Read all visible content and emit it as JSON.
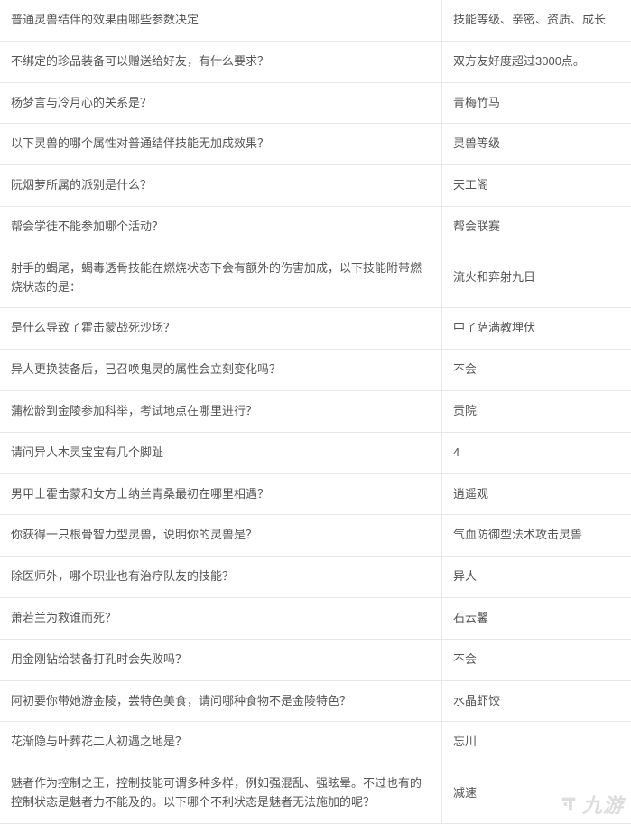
{
  "table": {
    "rows": [
      {
        "q": "普通灵兽结伴的效果由哪些参数决定",
        "a": "技能等级、亲密、资质、成长"
      },
      {
        "q": "不绑定的珍品装备可以赠送给好友，有什么要求？",
        "a": "双方友好度超过3000点。"
      },
      {
        "q": "杨梦言与冷月心的关系是？",
        "a": "青梅竹马"
      },
      {
        "q": "以下灵兽的哪个属性对普通结伴技能无加成效果？",
        "a": "灵兽等级"
      },
      {
        "q": "阮烟萝所属的派别是什么？",
        "a": "天工阁"
      },
      {
        "q": "帮会学徒不能参加哪个活动？",
        "a": "帮会联赛"
      },
      {
        "q": "射手的蝎尾，蝎毒透骨技能在燃烧状态下会有额外的伤害加成，以下技能附带燃烧状态的是：",
        "a": "流火和弈射九日"
      },
      {
        "q": "是什么导致了霍击蒙战死沙场？",
        "a": "中了萨满教埋伏"
      },
      {
        "q": "异人更换装备后，已召唤鬼灵的属性会立刻变化吗？",
        "a": "不会"
      },
      {
        "q": "蒲松龄到金陵参加科举，考试地点在哪里进行？",
        "a": "贡院"
      },
      {
        "q": "请问异人木灵宝宝有几个脚趾",
        "a": "4"
      },
      {
        "q": "男甲士霍击蒙和女方士纳兰青桑最初在哪里相遇？",
        "a": "逍遥观"
      },
      {
        "q": "你获得一只根骨智力型灵兽，说明你的灵兽是？",
        "a": "气血防御型法术攻击灵兽"
      },
      {
        "q": "除医师外，哪个职业也有治疗队友的技能？",
        "a": "异人"
      },
      {
        "q": "萧若兰为救谁而死？",
        "a": "石云馨"
      },
      {
        "q": "用金刚钻给装备打孔时会失败吗？",
        "a": "不会"
      },
      {
        "q": "阿初要你带她游金陵，尝特色美食，请问哪种食物不是金陵特色？",
        "a": "水晶虾饺"
      },
      {
        "q": "花渐隐与叶葬花二人初遇之地是？",
        "a": "忘川"
      },
      {
        "q": "魅者作为控制之王，控制技能可谓多种多样，例如强混乱、强眩晕。不过也有的控制状态是魅者力不能及的。以下哪个不利状态是魅者无法施加的呢？",
        "a": "减速"
      }
    ],
    "border_color": "#e8e8e8",
    "text_color": "#555555",
    "font_size": 13,
    "q_col_width": 490,
    "row_padding": 12
  },
  "watermark": {
    "text": "九游",
    "text_color": "#888888",
    "opacity": 0.28
  }
}
